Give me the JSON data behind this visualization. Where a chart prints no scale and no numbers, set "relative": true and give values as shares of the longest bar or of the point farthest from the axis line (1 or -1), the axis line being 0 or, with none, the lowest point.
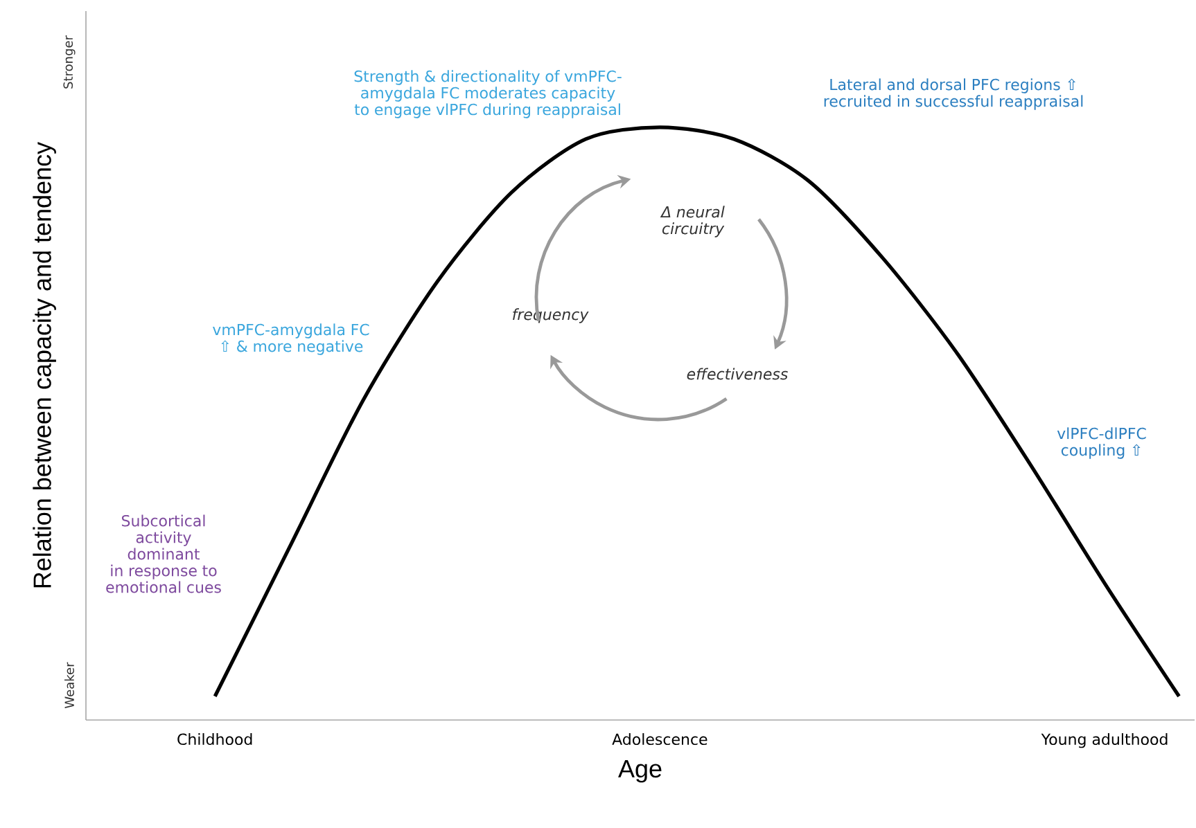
{
  "chart_data": {
    "type": "line",
    "relative": true,
    "xlabel": "Age",
    "ylabel": "Relation between capacity and tendency",
    "categories": [
      "Childhood",
      null,
      null,
      null,
      null,
      null,
      "Adolescence",
      null,
      null,
      null,
      null,
      null,
      "Young adulthood",
      null
    ],
    "values": [
      0.04,
      0.29,
      0.54,
      0.74,
      0.89,
      0.98,
      1.0,
      0.98,
      0.91,
      0.78,
      0.62,
      0.43,
      0.23,
      0.04
    ],
    "color": "#000000",
    "line_style": "solid",
    "annotations": [
      "Stronger",
      "Weaker",
      "Strength & directionality of vmPFC-amygdala FC moderates capacity to engage vlPFC during reappraisal",
      "Lateral and dorsal PFC regions ⇧ recruited in successful reappraisal",
      "vmPFC-amygdala FC ⇧ & more negative",
      "vlPFC-dlPFC coupling ⇧",
      "Subcortical activity dominant in response to emotional cues",
      "Δ neural circuitry",
      "frequency",
      "effectiveness"
    ]
  }
}
